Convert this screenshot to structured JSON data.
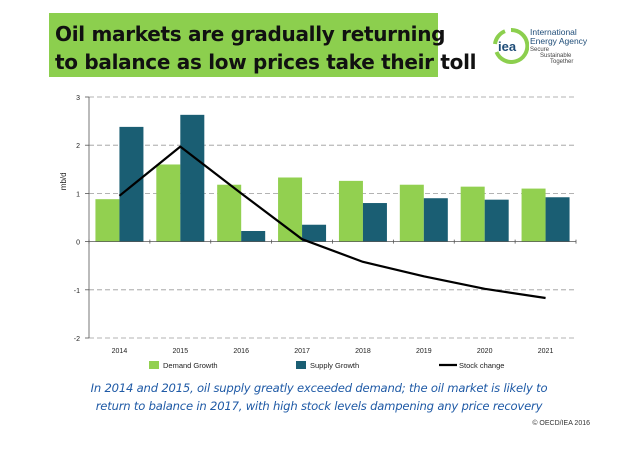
{
  "header": {
    "title_line1": "Oil markets are gradually returning",
    "title_line2": "to balance as low prices take their toll"
  },
  "logo": {
    "mark": "iea",
    "name_line1": "International",
    "name_line2": "Energy Agency",
    "tag1": "Secure",
    "tag2": "Sustainable",
    "tag3": "Together"
  },
  "chart_data": {
    "type": "bar",
    "categories": [
      "2014",
      "2015",
      "2016",
      "2017",
      "2018",
      "2019",
      "2020",
      "2021"
    ],
    "series": [
      {
        "name": "Demand Growth",
        "type": "bar",
        "color": "#92d050",
        "values": [
          0.88,
          1.6,
          1.18,
          1.33,
          1.26,
          1.18,
          1.14,
          1.1
        ]
      },
      {
        "name": "Supply Growth",
        "type": "bar",
        "color": "#1a5e73",
        "values": [
          2.38,
          2.63,
          0.22,
          0.35,
          0.8,
          0.9,
          0.87,
          0.92
        ]
      },
      {
        "name": "Stock change",
        "type": "line",
        "color": "#000000",
        "values": [
          0.95,
          1.97,
          1.0,
          0.05,
          -0.42,
          -0.72,
          -0.98,
          -1.17
        ]
      }
    ],
    "ylabel": "mb/d",
    "xlabel": "",
    "ylim": [
      -2,
      3
    ],
    "yticks": [
      "-2",
      "-1",
      "0",
      "1",
      "2",
      "3"
    ],
    "grid": true,
    "legend": "bottom"
  },
  "caption": {
    "line1": "In 2014 and 2015, oil supply greatly exceeded demand; the oil market is likely to",
    "line2": "return to balance in 2017,  with high stock levels dampening any price recovery"
  },
  "footer": {
    "copyright": "© OECD/IEA 2016"
  }
}
